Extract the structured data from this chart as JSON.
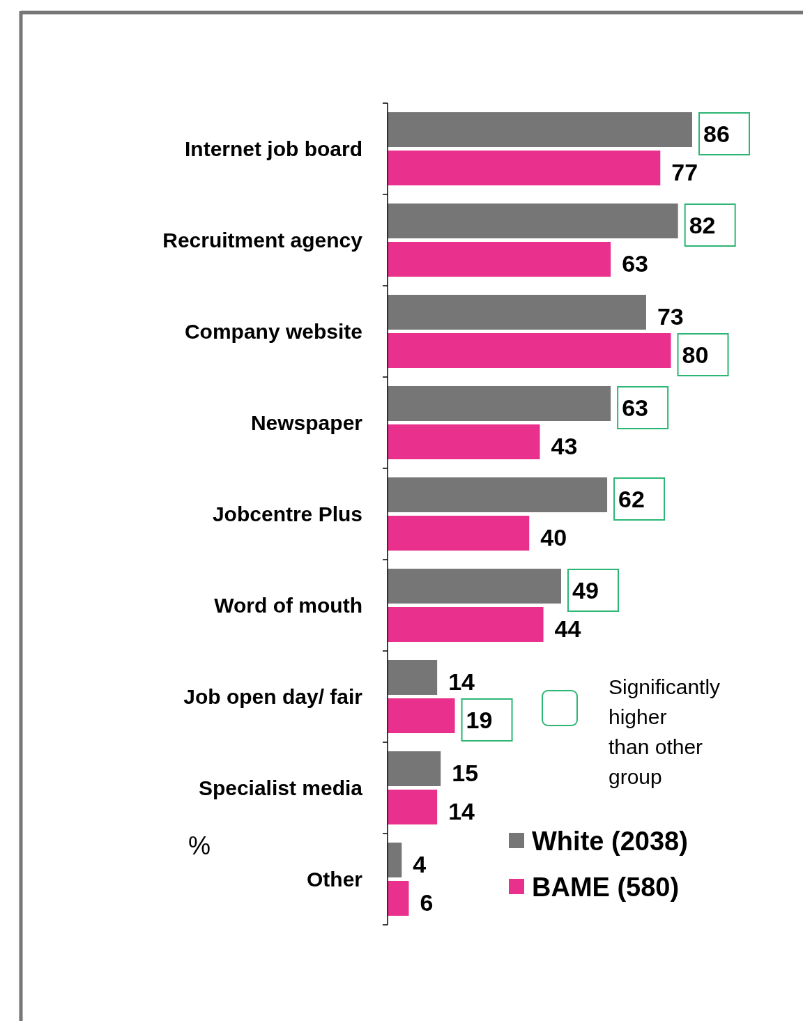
{
  "chart_data": {
    "type": "bar",
    "orientation": "horizontal",
    "categories": [
      "Internet job board",
      "Recruitment agency",
      "Company website",
      "Newspaper",
      "Jobcentre Plus",
      "Word of mouth",
      "Job open day/ fair",
      "Specialist media",
      "Other"
    ],
    "series": [
      {
        "name": "White (2038)",
        "color": "#767676",
        "values": [
          86,
          82,
          73,
          63,
          62,
          49,
          14,
          15,
          4
        ],
        "value_labels": [
          null,
          null,
          "73",
          null,
          null,
          null,
          "14",
          "15",
          "4"
        ]
      },
      {
        "name": "BAME (580)",
        "color": "#e8308c",
        "values": [
          77,
          63,
          80,
          43,
          40,
          44,
          19,
          14,
          6
        ],
        "value_labels": [
          "77",
          "63",
          null,
          "43",
          "40",
          "44",
          null,
          "14",
          "6"
        ]
      }
    ],
    "legend": "bottom right",
    "annotations": [
      "%",
      "Significantly higher than other group",
      {
        "text": "86",
        "x": 86,
        "y": "Internet job board"
      },
      {
        "text": "82",
        "x": 82,
        "y": "Recruitment agency"
      },
      {
        "text": "80",
        "x": 80,
        "y": "Company website"
      },
      {
        "text": "63",
        "x": 63,
        "y": "Newspaper"
      },
      {
        "text": "62",
        "x": 62,
        "y": "Jobcentre Plus"
      },
      {
        "text": "49",
        "x": 49,
        "y": "Word of mouth"
      },
      {
        "text": "19",
        "x": 19,
        "y": "Job open day/ fair"
      }
    ]
  }
}
